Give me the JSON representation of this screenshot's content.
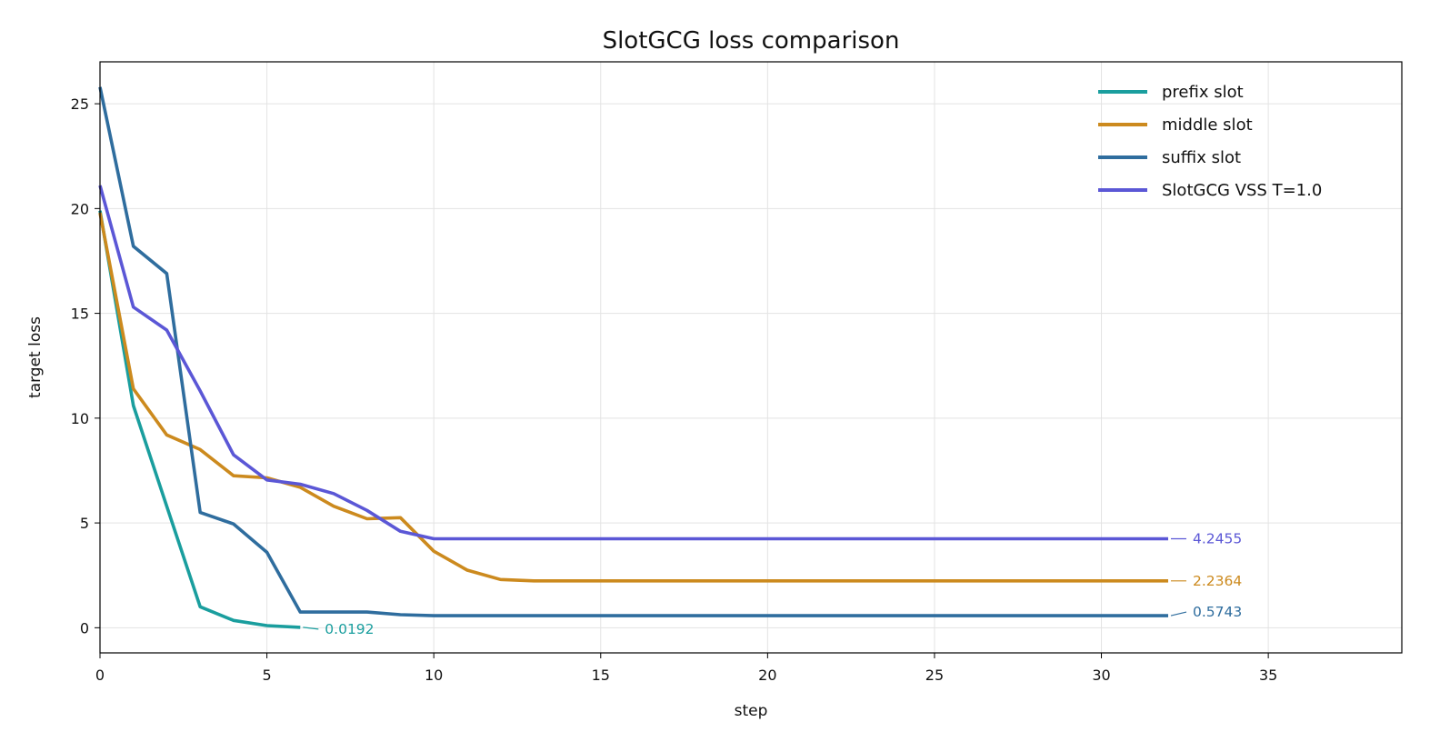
{
  "chart_data": {
    "type": "line",
    "title": "SlotGCG loss comparison",
    "xlabel": "step",
    "ylabel": "target loss",
    "xlim": [
      0,
      39
    ],
    "ylim": [
      -1.2,
      27
    ],
    "xticks": [
      0,
      5,
      10,
      15,
      20,
      25,
      30,
      35
    ],
    "yticks": [
      0,
      5,
      10,
      15,
      20,
      25
    ],
    "grid": true,
    "legend_position": "top-right",
    "series": [
      {
        "name": "prefix slot",
        "color": "#1a9e9e",
        "x": [
          0,
          1,
          2,
          3,
          4,
          5,
          6
        ],
        "y": [
          19.9,
          10.6,
          5.8,
          1.0,
          0.35,
          0.1,
          0.0192
        ],
        "end_label": "0.0192"
      },
      {
        "name": "middle slot",
        "color": "#cc8a1e",
        "x": [
          0,
          1,
          2,
          3,
          4,
          5,
          6,
          7,
          8,
          9,
          10,
          11,
          12,
          13,
          14,
          15,
          16,
          17,
          18,
          19,
          20,
          21,
          22,
          23,
          24,
          25,
          26,
          27,
          28,
          29,
          30,
          31,
          32
        ],
        "y": [
          19.8,
          11.4,
          9.2,
          8.5,
          7.25,
          7.15,
          6.7,
          5.8,
          5.2,
          5.25,
          3.65,
          2.75,
          2.3,
          2.2364,
          2.2364,
          2.2364,
          2.2364,
          2.2364,
          2.2364,
          2.2364,
          2.2364,
          2.2364,
          2.2364,
          2.2364,
          2.2364,
          2.2364,
          2.2364,
          2.2364,
          2.2364,
          2.2364,
          2.2364,
          2.2364,
          2.2364
        ],
        "end_label": "2.2364"
      },
      {
        "name": "suffix slot",
        "color": "#2f6d9e",
        "x": [
          0,
          1,
          2,
          3,
          4,
          5,
          6,
          7,
          8,
          9,
          10,
          11,
          12,
          13,
          14,
          15,
          16,
          17,
          18,
          19,
          20,
          21,
          22,
          23,
          24,
          25,
          26,
          27,
          28,
          29,
          30,
          31,
          32
        ],
        "y": [
          25.8,
          18.2,
          16.9,
          5.5,
          4.95,
          3.6,
          0.75,
          0.75,
          0.75,
          0.62,
          0.5743,
          0.5743,
          0.5743,
          0.5743,
          0.5743,
          0.5743,
          0.5743,
          0.5743,
          0.5743,
          0.5743,
          0.5743,
          0.5743,
          0.5743,
          0.5743,
          0.5743,
          0.5743,
          0.5743,
          0.5743,
          0.5743,
          0.5743,
          0.5743,
          0.5743,
          0.5743
        ],
        "end_label": "0.5743"
      },
      {
        "name": "SlotGCG VSS T=1.0",
        "color": "#5b57d6",
        "x": [
          0,
          1,
          2,
          3,
          4,
          5,
          6,
          7,
          8,
          9,
          10,
          11,
          12,
          13,
          14,
          15,
          16,
          17,
          18,
          19,
          20,
          21,
          22,
          23,
          24,
          25,
          26,
          27,
          28,
          29,
          30,
          31,
          32
        ],
        "y": [
          21.1,
          15.3,
          14.2,
          11.3,
          8.25,
          7.05,
          6.85,
          6.4,
          5.6,
          4.6,
          4.2455,
          4.2455,
          4.2455,
          4.2455,
          4.2455,
          4.2455,
          4.2455,
          4.2455,
          4.2455,
          4.2455,
          4.2455,
          4.2455,
          4.2455,
          4.2455,
          4.2455,
          4.2455,
          4.2455,
          4.2455,
          4.2455,
          4.2455,
          4.2455,
          4.2455,
          4.2455
        ],
        "end_label": "4.2455"
      }
    ]
  }
}
